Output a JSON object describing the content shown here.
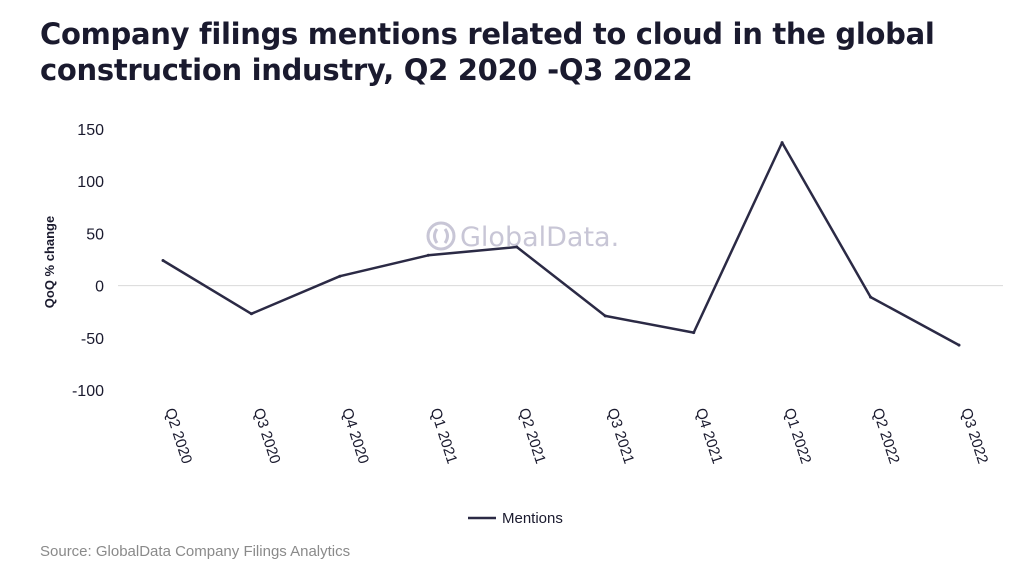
{
  "title": "Company filings mentions related to cloud in the global construction industry, Q2 2020 -Q3 2022",
  "source": "Source: GlobalData Company Filings Analytics",
  "watermark": "GlobalData.",
  "colors": {
    "line": "#2b2a45",
    "zero_line": "#d9d9d9",
    "text": "#1a1a2e",
    "source": "#8a8a8a",
    "watermark": "#c8c6d6"
  },
  "chart_data": {
    "type": "line",
    "ylabel": "QoQ % change",
    "xlabel": "",
    "ylim": [
      -100,
      150
    ],
    "yticks": [
      -100,
      -50,
      0,
      50,
      100,
      150
    ],
    "grid": false,
    "legend": "bottom-center",
    "categories": [
      "Q2 2020",
      "Q3 2020",
      "Q4 2020",
      "Q1 2021",
      "Q2 2021",
      "Q3 2021",
      "Q4 2021",
      "Q1 2022",
      "Q2 2022",
      "Q3 2022"
    ],
    "series": [
      {
        "name": "Mentions",
        "values": [
          24,
          -27,
          9,
          29,
          37,
          -29,
          -45,
          137,
          -11,
          -57
        ]
      }
    ]
  }
}
